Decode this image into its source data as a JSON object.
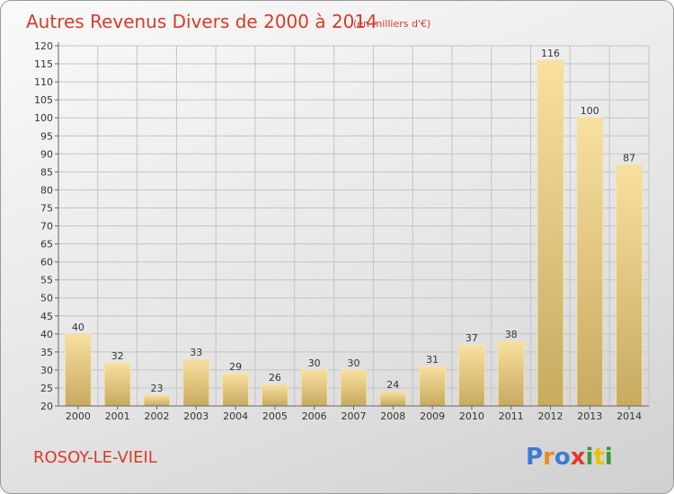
{
  "chart_data": {
    "type": "bar",
    "title": "Autres Revenus Divers de 2000 à 2014",
    "subtitle": "(en milliers d'€)",
    "categories": [
      "2000",
      "2001",
      "2002",
      "2003",
      "2004",
      "2005",
      "2006",
      "2007",
      "2008",
      "2009",
      "2010",
      "2011",
      "2012",
      "2013",
      "2014"
    ],
    "values": [
      40,
      32,
      23,
      33,
      29,
      26,
      30,
      30,
      24,
      31,
      37,
      38,
      116,
      100,
      87
    ],
    "ylim": [
      20,
      120
    ],
    "yticks": [
      20,
      25,
      30,
      35,
      40,
      45,
      50,
      55,
      60,
      65,
      70,
      75,
      80,
      85,
      90,
      95,
      100,
      105,
      110,
      115,
      120
    ],
    "grid": true,
    "bar_color": "#e8c878"
  },
  "footer": {
    "commune": "ROSOY-LE-VIEIL",
    "logo_letters": [
      "P",
      "r",
      "o",
      "x",
      "i",
      "t",
      "i"
    ],
    "logo_colors": [
      "#3a7bd5",
      "#f08a1c",
      "#3a7bd5",
      "#e23a2a",
      "#3a9a3a",
      "#f0c000",
      "#3a9a3a"
    ]
  }
}
